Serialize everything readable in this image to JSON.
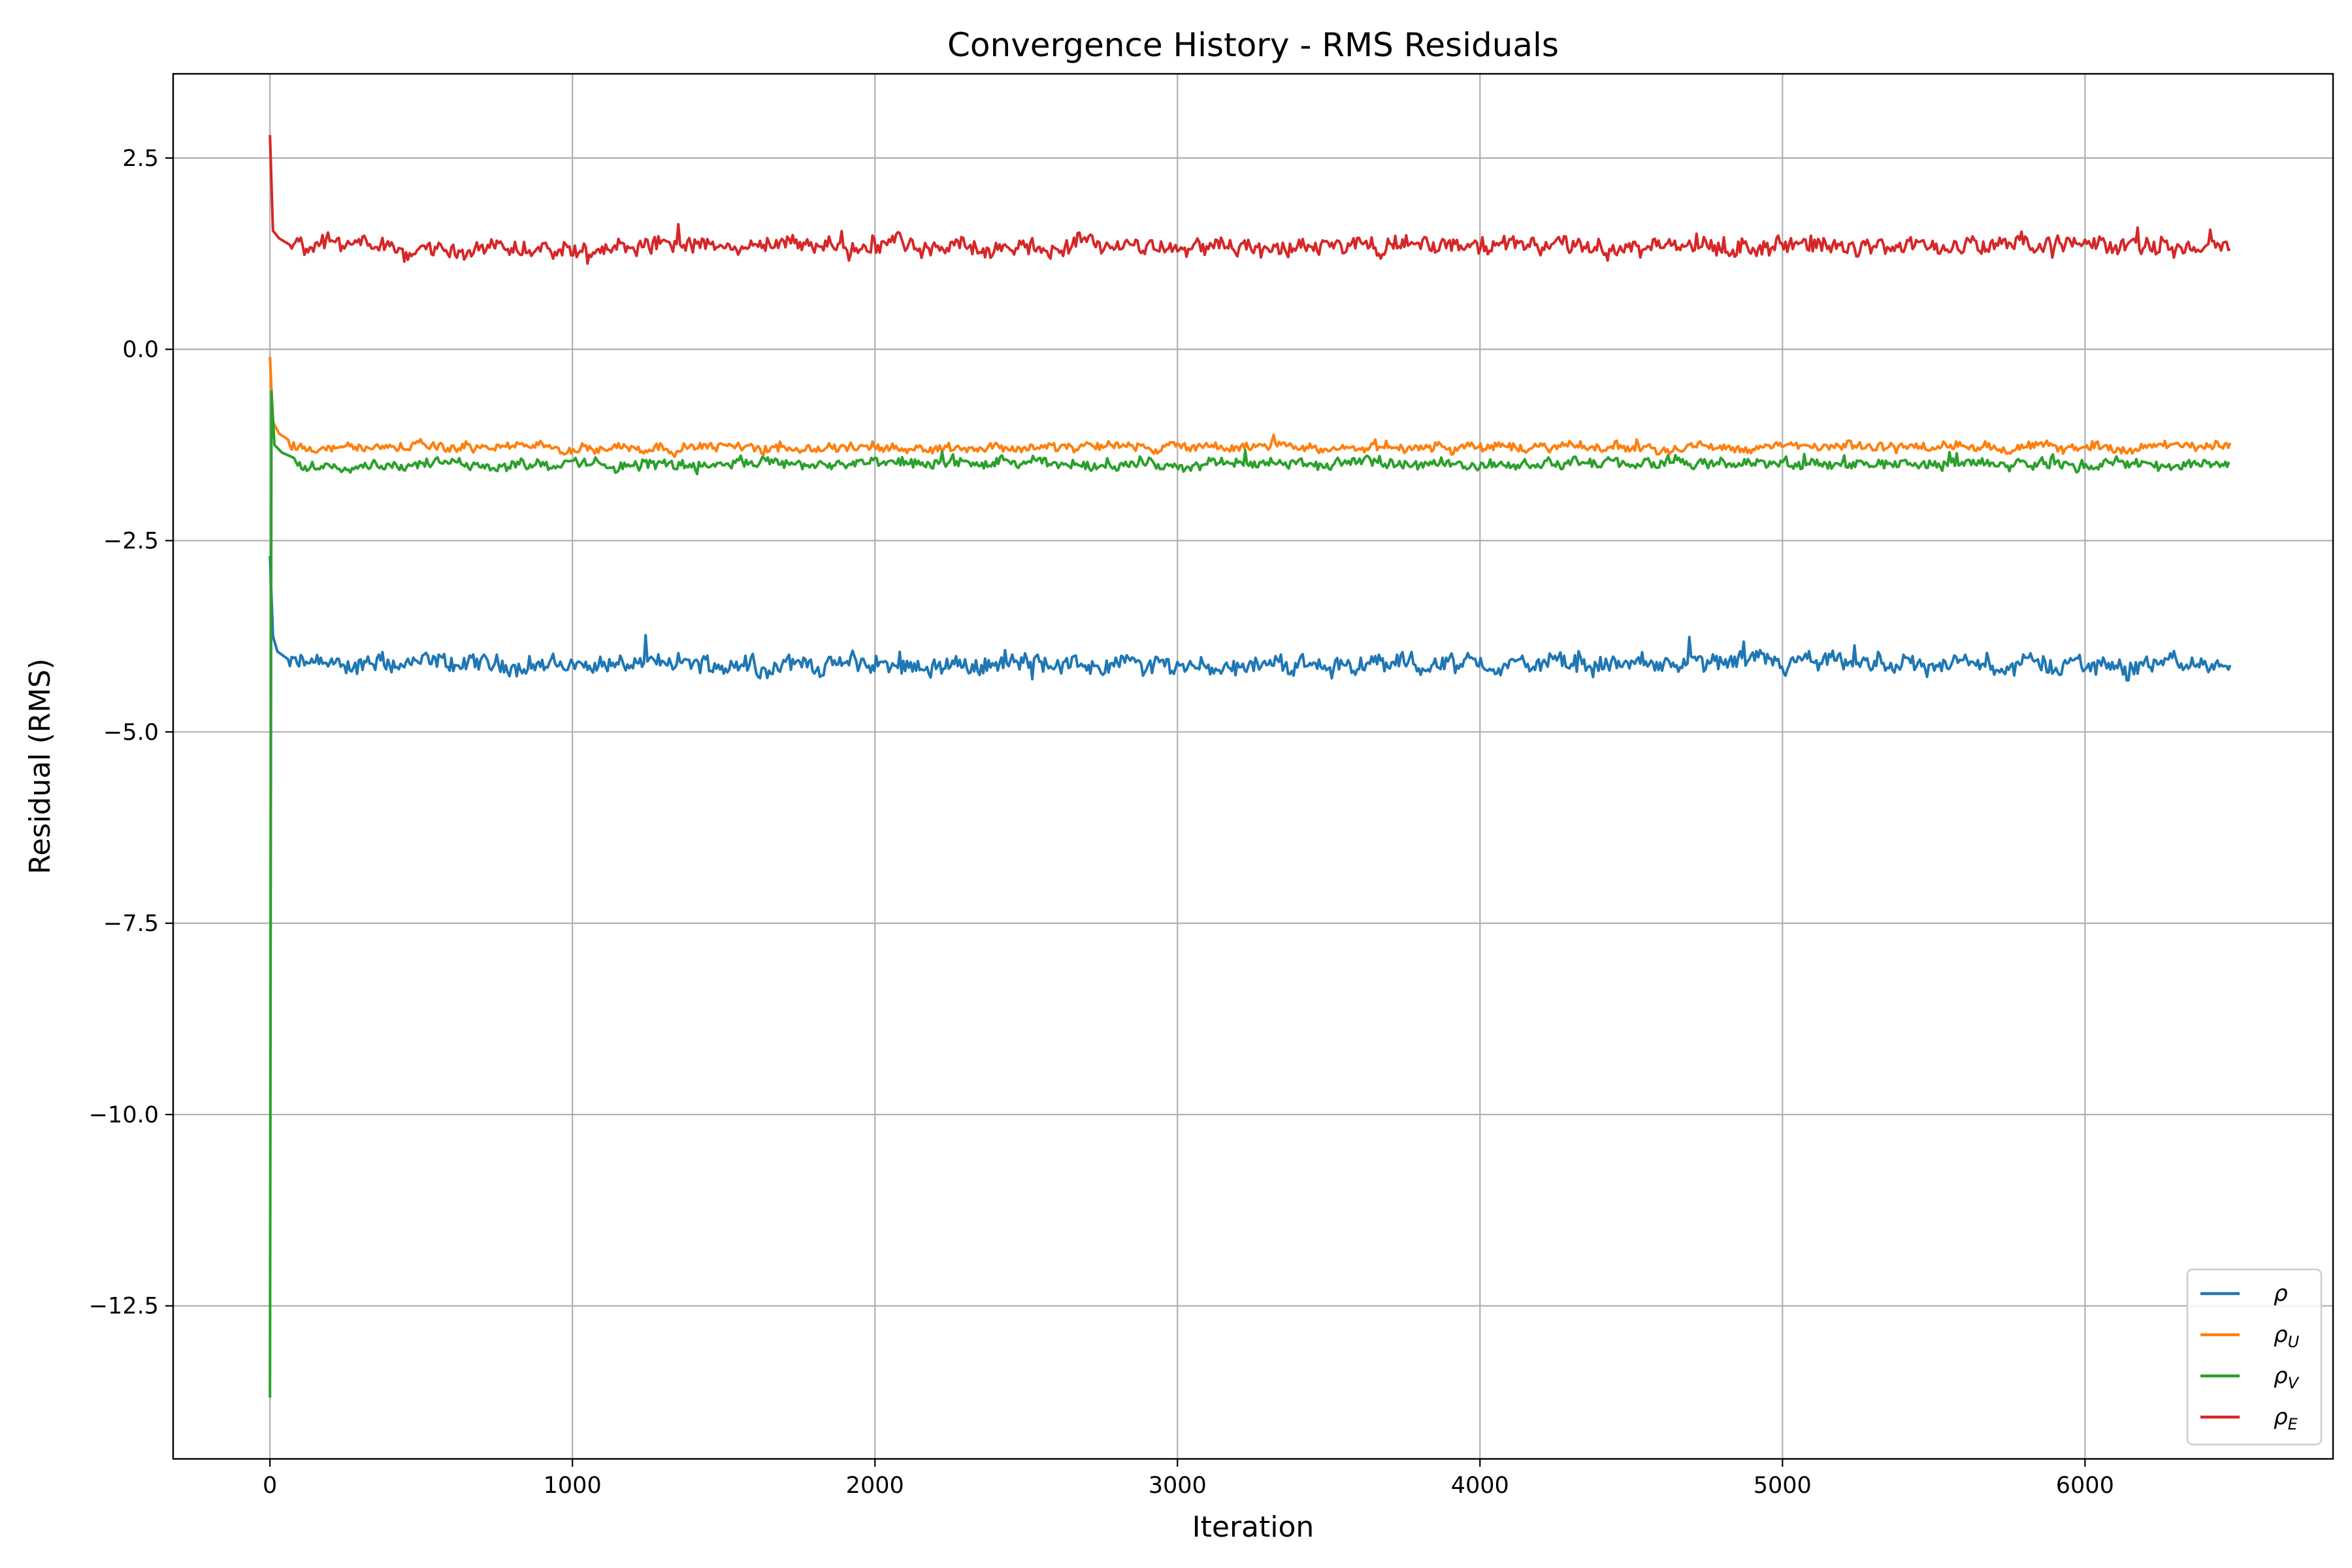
{
  "chart_data": {
    "type": "line",
    "title": "Convergence History - RMS Residuals",
    "xlabel": "Iteration",
    "ylabel": "Residual (RMS)",
    "xlim": [
      -320,
      6820
    ],
    "ylim": [
      -14.5,
      3.6
    ],
    "x_ticks": [
      0,
      1000,
      2000,
      3000,
      4000,
      5000,
      6000
    ],
    "x_tick_labels": [
      "0",
      "1000",
      "2000",
      "3000",
      "4000",
      "5000",
      "6000"
    ],
    "y_ticks": [
      2.5,
      0.0,
      -2.5,
      -5.0,
      -7.5,
      -10.0,
      -12.5
    ],
    "y_tick_labels": [
      "2.5",
      "0.0",
      "−2.5",
      "−5.0",
      "−7.5",
      "−10.0",
      "−12.5"
    ],
    "grid": true,
    "legend_position": "lower-right",
    "x_end": 6480,
    "series": [
      {
        "name": "ρ",
        "name_base": "ρ",
        "name_sub": "",
        "color": "#1f77b4",
        "initial": [
          [
            0,
            -2.7
          ],
          [
            10,
            -3.75
          ],
          [
            25,
            -3.95
          ],
          [
            60,
            -4.05
          ]
        ],
        "steady_level": -4.12,
        "noise_amplitude": 0.18
      },
      {
        "name": "ρU",
        "name_base": "ρ",
        "name_sub": "U",
        "color": "#ff7f0e",
        "initial": [
          [
            0,
            -0.1
          ],
          [
            10,
            -0.95
          ],
          [
            30,
            -1.1
          ],
          [
            60,
            -1.18
          ]
        ],
        "steady_level": -1.28,
        "noise_amplitude": 0.09
      },
      {
        "name": "ρV",
        "name_base": "ρ",
        "name_sub": "V",
        "color": "#2ca02c",
        "initial": [
          [
            0,
            -13.7
          ],
          [
            5,
            -0.55
          ],
          [
            15,
            -1.25
          ],
          [
            40,
            -1.35
          ],
          [
            80,
            -1.42
          ]
        ],
        "steady_level": -1.5,
        "noise_amplitude": 0.1
      },
      {
        "name": "ρE",
        "name_base": "ρ",
        "name_sub": "E",
        "color": "#d62728",
        "initial": [
          [
            0,
            2.8
          ],
          [
            10,
            1.55
          ],
          [
            30,
            1.45
          ],
          [
            60,
            1.38
          ]
        ],
        "steady_level": 1.35,
        "noise_amplitude": 0.17
      }
    ]
  }
}
